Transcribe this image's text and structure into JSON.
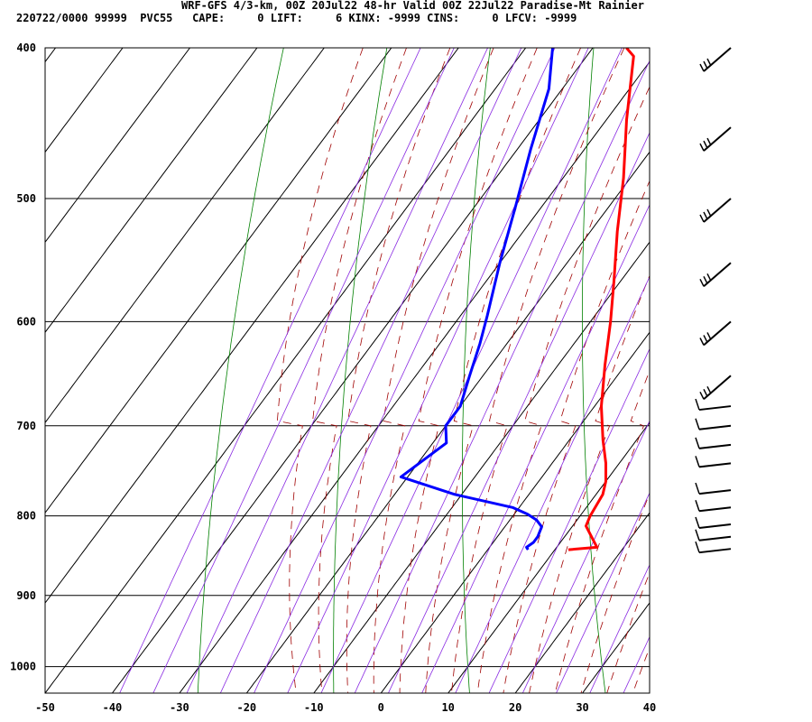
{
  "header": {
    "title": "WRF-GFS 4/3-km, 00Z 20Jul22 48-hr Valid 00Z 22Jul22 Paradise-Mt Rainier",
    "stats": "220722/0000 99999  PVC55   CAPE:     0 LIFT:     6 KINX: -9999 CINS:     0 LFCV: -9999"
  },
  "chart_data": {
    "type": "line",
    "title": "WRF-GFS 4/3-km, 00Z 20Jul22 48-hr Valid 00Z 22Jul22 Paradise-Mt Rainier",
    "xlim": [
      -50,
      40
    ],
    "ylim": [
      400,
      1040
    ],
    "y_scale": "log",
    "x_ticks": [
      "-50",
      "-40",
      "-30",
      "-20",
      "-10",
      "0",
      "10",
      "20",
      "30",
      "40"
    ],
    "y_ticks": [
      "400",
      "500",
      "600",
      "700",
      "800",
      "900",
      "1000"
    ],
    "grid": true,
    "series": [
      {
        "color": "#ff0000",
        "points": [
          [
            12,
            841
          ],
          [
            16,
            838
          ],
          [
            14,
            825
          ],
          [
            12,
            812
          ],
          [
            11.5,
            800
          ],
          [
            11,
            775
          ],
          [
            10,
            760
          ],
          [
            8,
            740
          ],
          [
            5,
            715
          ],
          [
            1,
            680
          ],
          [
            -3,
            640
          ],
          [
            -7,
            600
          ],
          [
            -11,
            565
          ],
          [
            -16,
            525
          ],
          [
            -21,
            485
          ],
          [
            -27,
            445
          ],
          [
            -33,
            405
          ],
          [
            -35,
            400
          ]
        ]
      },
      {
        "color": "#0000ff",
        "points": [
          [
            6,
            841
          ],
          [
            5.5,
            838
          ],
          [
            6,
            832
          ],
          [
            6,
            825
          ],
          [
            5.5,
            813
          ],
          [
            4,
            805
          ],
          [
            2,
            798
          ],
          [
            -1,
            790
          ],
          [
            -11,
            775
          ],
          [
            -21,
            755
          ],
          [
            -18,
            718
          ],
          [
            -20,
            700
          ],
          [
            -20,
            680
          ],
          [
            -22,
            650
          ],
          [
            -24,
            620
          ],
          [
            -26,
            595
          ],
          [
            -30,
            550
          ],
          [
            -34,
            505
          ],
          [
            -38,
            465
          ],
          [
            -42,
            425
          ],
          [
            -46,
            400
          ]
        ]
      }
    ],
    "wind_barbs": [
      {
        "p": 400
      },
      {
        "p": 450
      },
      {
        "p": 500
      },
      {
        "p": 550
      },
      {
        "p": 600
      },
      {
        "p": 650
      },
      {
        "p": 680
      },
      {
        "p": 700
      },
      {
        "p": 720
      },
      {
        "p": 740
      },
      {
        "p": 770
      },
      {
        "p": 790
      },
      {
        "p": 810
      },
      {
        "p": 825
      },
      {
        "p": 840
      }
    ],
    "colors": {
      "isotherm": "#000000",
      "dry_adiabat": "#008000",
      "moist_adiabat": "#a00000",
      "mixing_ratio": "#8a2be2",
      "temperature": "#ff0000",
      "dewpoint": "#0000ff"
    }
  }
}
